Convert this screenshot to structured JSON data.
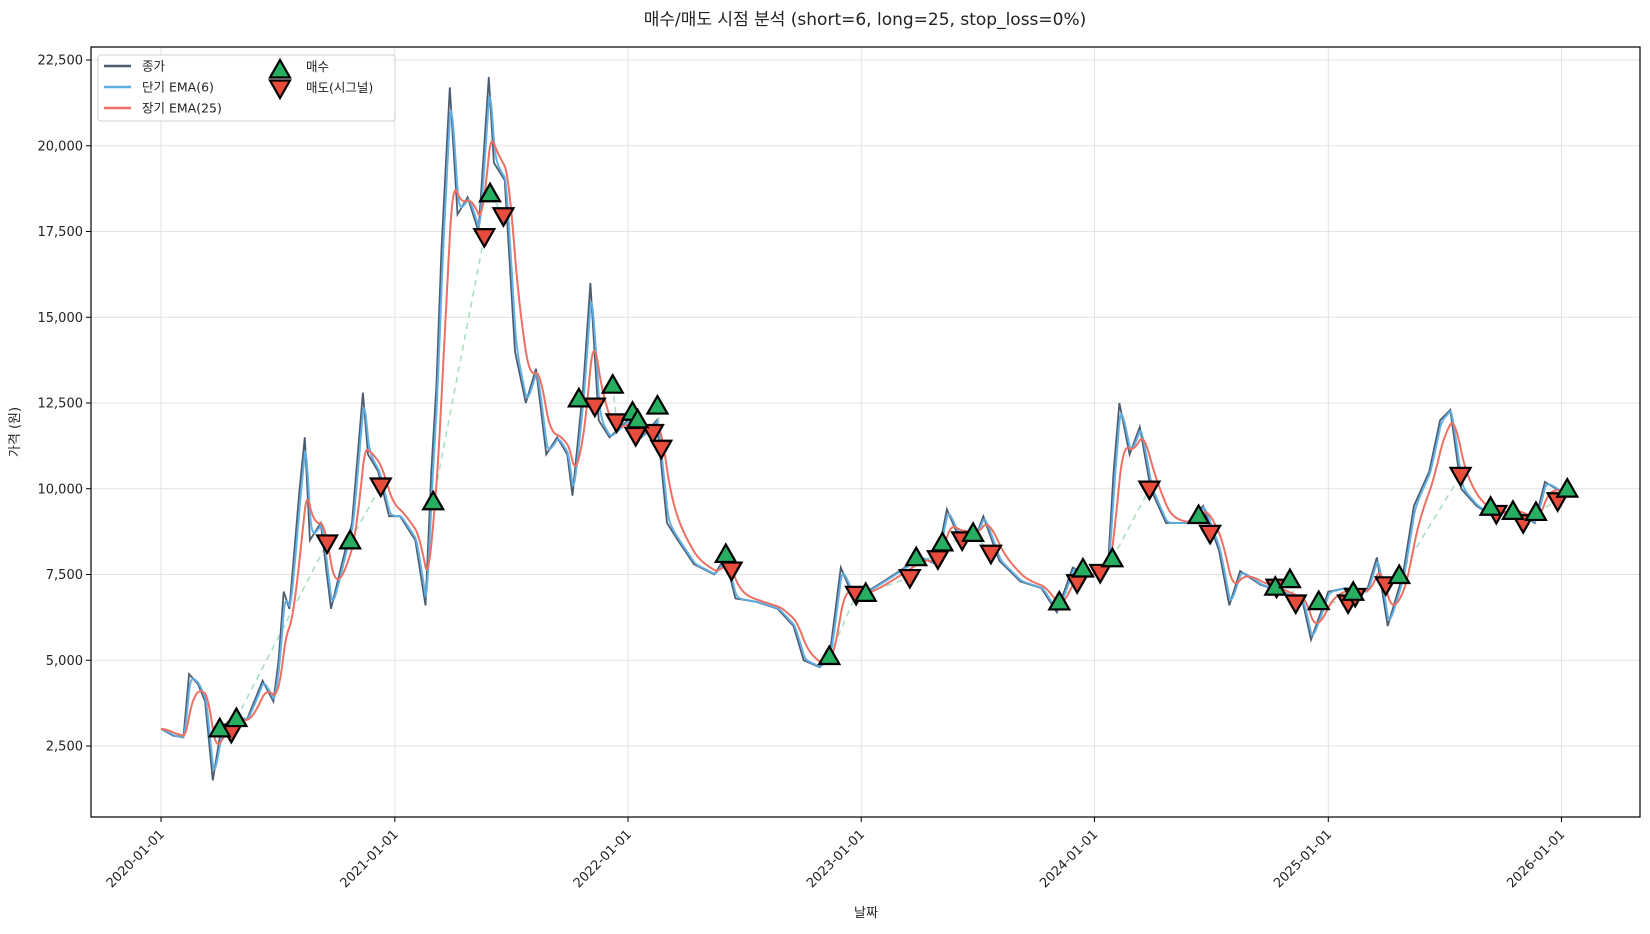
{
  "chart_data": {
    "type": "line",
    "title": "매수/매도 시점 분석 (short=6, long=25, stop_loss=0%)",
    "xlabel": "날짜",
    "ylabel": "가격 (원)",
    "xticks": [
      "2020-01-01",
      "2021-01-01",
      "2022-01-01",
      "2023-01-01",
      "2024-01-01",
      "2025-01-01",
      "2026-01-01"
    ],
    "yticks": [
      2500,
      5000,
      7500,
      10000,
      12500,
      15000,
      17500,
      20000,
      22500
    ],
    "ytick_labels": [
      "2,500",
      "5,000",
      "7,500",
      "10,000",
      "12,500",
      "15,000",
      "17,500",
      "20,000",
      "22,500"
    ],
    "ylim": [
      450,
      22870
    ],
    "xlim": [
      "2019-10-20",
      "2026-04-25"
    ],
    "grid": true,
    "legend_position": "top-left",
    "ema_spans": {
      "short": 6,
      "long": 25
    },
    "legend": [
      {
        "label": "종가",
        "kind": "line",
        "color": "#4d5d70"
      },
      {
        "label": "단기 EMA(6)",
        "kind": "line",
        "color": "#5dade2"
      },
      {
        "label": "장기 EMA(25)",
        "kind": "line",
        "color": "#ec7063"
      },
      {
        "label": "매수",
        "kind": "marker-up",
        "color": "#27ae60"
      },
      {
        "label": "매도(시그널)",
        "kind": "marker-down",
        "color": "#e74c3c"
      }
    ],
    "holding_line_color": "#a9dfbf",
    "close": [
      [
        "2020-01-01",
        3000
      ],
      [
        "2020-01-20",
        2800
      ],
      [
        "2020-02-05",
        2750
      ],
      [
        "2020-02-14",
        4600
      ],
      [
        "2020-02-28",
        4300
      ],
      [
        "2020-03-10",
        3800
      ],
      [
        "2020-03-22",
        1500
      ],
      [
        "2020-04-04",
        3000
      ],
      [
        "2020-04-20",
        3300
      ],
      [
        "2020-05-15",
        3300
      ],
      [
        "2020-06-08",
        4400
      ],
      [
        "2020-06-25",
        3800
      ],
      [
        "2020-07-03",
        5000
      ],
      [
        "2020-07-11",
        7000
      ],
      [
        "2020-07-20",
        6500
      ],
      [
        "2020-08-05",
        10000
      ],
      [
        "2020-08-13",
        11500
      ],
      [
        "2020-08-21",
        8500
      ],
      [
        "2020-09-07",
        9000
      ],
      [
        "2020-09-23",
        6500
      ],
      [
        "2020-10-10",
        7800
      ],
      [
        "2020-10-26",
        9000
      ],
      [
        "2020-11-12",
        12800
      ],
      [
        "2020-11-20",
        11000
      ],
      [
        "2020-12-06",
        10500
      ],
      [
        "2020-12-23",
        9200
      ],
      [
        "2021-01-09",
        9200
      ],
      [
        "2021-02-02",
        8500
      ],
      [
        "2021-02-18",
        6600
      ],
      [
        "2021-02-27",
        10500
      ],
      [
        "2021-03-07",
        13000
      ],
      [
        "2021-03-15",
        17000
      ],
      [
        "2021-03-28",
        21700
      ],
      [
        "2021-04-09",
        18000
      ],
      [
        "2021-04-25",
        18500
      ],
      [
        "2021-05-12",
        17500
      ],
      [
        "2021-05-28",
        22000
      ],
      [
        "2021-06-05",
        19500
      ],
      [
        "2021-06-22",
        19000
      ],
      [
        "2021-07-08",
        14000
      ],
      [
        "2021-07-25",
        12500
      ],
      [
        "2021-08-10",
        13500
      ],
      [
        "2021-08-26",
        11000
      ],
      [
        "2021-09-12",
        11500
      ],
      [
        "2021-09-28",
        11000
      ],
      [
        "2021-10-06",
        9800
      ],
      [
        "2021-10-23",
        13000
      ],
      [
        "2021-11-03",
        16000
      ],
      [
        "2021-11-16",
        12000
      ],
      [
        "2021-12-03",
        11500
      ],
      [
        "2022-01-01",
        12000
      ],
      [
        "2022-01-22",
        11500
      ],
      [
        "2022-02-15",
        12000
      ],
      [
        "2022-03-03",
        9000
      ],
      [
        "2022-03-20",
        8500
      ],
      [
        "2022-04-14",
        7800
      ],
      [
        "2022-05-16",
        7500
      ],
      [
        "2022-06-02",
        8000
      ],
      [
        "2022-06-18",
        6800
      ],
      [
        "2022-07-21",
        6700
      ],
      [
        "2022-08-23",
        6500
      ],
      [
        "2022-09-17",
        6000
      ],
      [
        "2022-10-03",
        5000
      ],
      [
        "2022-10-28",
        4800
      ],
      [
        "2022-11-13",
        5200
      ],
      [
        "2022-11-30",
        7700
      ],
      [
        "2022-12-16",
        7000
      ],
      [
        "2023-01-01",
        6900
      ],
      [
        "2023-02-05",
        7300
      ],
      [
        "2023-03-10",
        7700
      ],
      [
        "2023-04-04",
        8000
      ],
      [
        "2023-04-28",
        7800
      ],
      [
        "2023-05-15",
        9400
      ],
      [
        "2023-05-31",
        8700
      ],
      [
        "2023-07-03",
        8800
      ],
      [
        "2023-07-11",
        9200
      ],
      [
        "2023-08-05",
        7900
      ],
      [
        "2023-09-07",
        7300
      ],
      [
        "2023-10-10",
        7100
      ],
      [
        "2023-11-03",
        6400
      ],
      [
        "2023-11-28",
        7700
      ],
      [
        "2023-12-23",
        7500
      ],
      [
        "2024-01-07",
        7500
      ],
      [
        "2024-01-23",
        8000
      ],
      [
        "2024-01-31",
        10500
      ],
      [
        "2024-02-09",
        12500
      ],
      [
        "2024-02-25",
        11000
      ],
      [
        "2024-03-12",
        11800
      ],
      [
        "2024-03-29",
        10000
      ],
      [
        "2024-04-22",
        9000
      ],
      [
        "2024-05-25",
        9000
      ],
      [
        "2024-06-19",
        9500
      ],
      [
        "2024-07-14",
        8200
      ],
      [
        "2024-07-30",
        6600
      ],
      [
        "2024-08-16",
        7600
      ],
      [
        "2024-09-17",
        7200
      ],
      [
        "2024-10-20",
        7000
      ],
      [
        "2024-11-22",
        6700
      ],
      [
        "2024-12-05",
        5600
      ],
      [
        "2025-01-01",
        7000
      ],
      [
        "2025-01-28",
        7100
      ],
      [
        "2025-03-02",
        7000
      ],
      [
        "2025-03-18",
        8000
      ],
      [
        "2025-04-04",
        6000
      ],
      [
        "2025-04-28",
        7500
      ],
      [
        "2025-05-15",
        9500
      ],
      [
        "2025-06-08",
        10500
      ],
      [
        "2025-06-25",
        12000
      ],
      [
        "2025-07-11",
        12300
      ],
      [
        "2025-07-28",
        10000
      ],
      [
        "2025-08-21",
        9500
      ],
      [
        "2025-09-15",
        9200
      ],
      [
        "2025-10-18",
        9400
      ],
      [
        "2025-11-20",
        9000
      ],
      [
        "2025-12-06",
        10200
      ],
      [
        "2026-01-01",
        9900
      ],
      [
        "2026-01-18",
        9800
      ]
    ],
    "buy_signals": [
      [
        "2020-04-02",
        3000
      ],
      [
        "2020-04-28",
        3300
      ],
      [
        "2020-10-23",
        8480
      ],
      [
        "2021-03-02",
        9620
      ],
      [
        "2021-05-30",
        18600
      ],
      [
        "2021-10-16",
        12620
      ],
      [
        "2021-12-08",
        13020
      ],
      [
        "2022-01-08",
        12230
      ],
      [
        "2022-01-16",
        12010
      ],
      [
        "2022-02-16",
        12410
      ],
      [
        "2022-06-03",
        8085
      ],
      [
        "2022-11-12",
        5110
      ],
      [
        "2023-01-08",
        6950
      ],
      [
        "2023-03-28",
        7990
      ],
      [
        "2023-05-08",
        8420
      ],
      [
        "2023-06-25",
        8700
      ],
      [
        "2023-11-07",
        6700
      ],
      [
        "2023-12-14",
        7660
      ],
      [
        "2024-01-29",
        7960
      ],
      [
        "2024-06-12",
        9220
      ],
      [
        "2024-10-10",
        7130
      ],
      [
        "2024-11-02",
        7350
      ],
      [
        "2024-12-17",
        6710
      ],
      [
        "2025-02-09",
        6980
      ],
      [
        "2025-04-22",
        7470
      ],
      [
        "2025-09-12",
        9460
      ],
      [
        "2025-10-17",
        9340
      ],
      [
        "2025-11-22",
        9310
      ],
      [
        "2026-01-10",
        9990
      ]
    ],
    "sell_signals": [
      [
        "2020-04-20",
        2900
      ],
      [
        "2020-09-17",
        8420
      ],
      [
        "2020-12-10",
        10080
      ],
      [
        "2021-05-21",
        17350
      ],
      [
        "2021-06-20",
        17960
      ],
      [
        "2021-11-10",
        12410
      ],
      [
        "2021-12-14",
        11950
      ],
      [
        "2022-01-13",
        11550
      ],
      [
        "2022-02-09",
        11640
      ],
      [
        "2022-02-22",
        11180
      ],
      [
        "2022-06-12",
        7630
      ],
      [
        "2022-12-24",
        6920
      ],
      [
        "2023-03-18",
        7410
      ],
      [
        "2023-05-01",
        7960
      ],
      [
        "2023-06-08",
        8510
      ],
      [
        "2023-07-23",
        8120
      ],
      [
        "2023-12-05",
        7260
      ],
      [
        "2024-01-10",
        7560
      ],
      [
        "2024-03-27",
        9990
      ],
      [
        "2024-06-30",
        8700
      ],
      [
        "2024-10-12",
        7130
      ],
      [
        "2024-11-11",
        6670
      ],
      [
        "2025-02-01",
        6670
      ],
      [
        "2025-02-12",
        6860
      ],
      [
        "2025-04-01",
        7200
      ],
      [
        "2025-07-27",
        10390
      ],
      [
        "2025-09-21",
        9280
      ],
      [
        "2025-11-02",
        9010
      ],
      [
        "2025-12-26",
        9650
      ]
    ]
  }
}
